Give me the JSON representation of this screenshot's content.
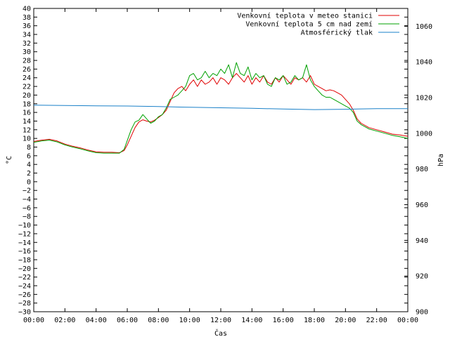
{
  "chart_data": {
    "type": "line",
    "xlabel": "Čas",
    "ylabel": "°C",
    "y2label": "hPa",
    "xlim": [
      0,
      24
    ],
    "ylim": [
      -30,
      40
    ],
    "y2lim": [
      900,
      1070
    ],
    "x_ticks": [
      "00:00",
      "02:00",
      "04:00",
      "06:00",
      "08:00",
      "10:00",
      "12:00",
      "14:00",
      "16:00",
      "18:00",
      "20:00",
      "22:00",
      "00:00"
    ],
    "y_ticks": [
      40,
      38,
      36,
      34,
      32,
      30,
      28,
      26,
      24,
      22,
      20,
      18,
      16,
      14,
      12,
      10,
      8,
      6,
      4,
      2,
      0,
      -2,
      -4,
      -6,
      -8,
      -10,
      -12,
      -14,
      -16,
      -18,
      -20,
      -22,
      -24,
      -26,
      -28,
      -30
    ],
    "y2_ticks": [
      1060,
      1040,
      1020,
      1000,
      980,
      960,
      940,
      920,
      900
    ],
    "grid": false,
    "legend_position": "top-right",
    "series": [
      {
        "name": "Venkovní teplota v meteo stanici",
        "color": "#e00000",
        "axis": "y",
        "x": [
          0,
          0.5,
          1,
          1.5,
          2,
          2.5,
          3,
          3.5,
          4,
          4.5,
          5,
          5.5,
          5.8,
          6,
          6.25,
          6.5,
          6.75,
          7,
          7.25,
          7.5,
          7.75,
          8,
          8.25,
          8.5,
          8.75,
          9,
          9.25,
          9.5,
          9.75,
          10,
          10.25,
          10.5,
          10.75,
          11,
          11.25,
          11.5,
          11.75,
          12,
          12.25,
          12.5,
          12.75,
          13,
          13.25,
          13.5,
          13.75,
          14,
          14.25,
          14.5,
          14.75,
          15,
          15.25,
          15.5,
          15.75,
          16,
          16.25,
          16.5,
          16.75,
          17,
          17.25,
          17.5,
          17.75,
          18,
          18.25,
          18.5,
          18.75,
          19,
          19.25,
          19.5,
          19.75,
          20,
          20.25,
          20.5,
          20.75,
          21,
          21.5,
          22,
          22.5,
          23,
          23.5,
          24
        ],
        "y": [
          9.3,
          9.6,
          9.8,
          9.4,
          8.7,
          8.2,
          7.8,
          7.3,
          6.9,
          6.8,
          6.8,
          6.7,
          7.2,
          8.5,
          10.5,
          12.5,
          13.8,
          14.3,
          14.0,
          13.8,
          14.2,
          14.8,
          15.5,
          16.5,
          18.5,
          20.5,
          21.5,
          22.0,
          21.0,
          22.5,
          23.5,
          22.0,
          23.5,
          22.5,
          23.0,
          24.0,
          22.5,
          24.0,
          23.5,
          22.5,
          24.0,
          25.0,
          24.0,
          23.0,
          24.5,
          22.5,
          24.0,
          23.0,
          24.5,
          23.0,
          22.5,
          24.0,
          23.0,
          24.5,
          23.5,
          22.5,
          24.0,
          23.5,
          24.0,
          23.0,
          24.5,
          22.5,
          22.0,
          21.5,
          21.0,
          21.2,
          21.0,
          20.5,
          20.0,
          19.0,
          18.0,
          16.5,
          14.5,
          13.5,
          12.5,
          12.0,
          11.5,
          11.0,
          10.8,
          10.5
        ]
      },
      {
        "name": "Venkovní teplota 5 cm nad zemí",
        "color": "#00a000",
        "axis": "y",
        "x": [
          0,
          0.5,
          1,
          1.5,
          2,
          2.5,
          3,
          3.5,
          4,
          4.5,
          5,
          5.5,
          5.8,
          6,
          6.25,
          6.5,
          6.75,
          7,
          7.25,
          7.5,
          7.75,
          8,
          8.25,
          8.5,
          8.75,
          9,
          9.25,
          9.5,
          9.75,
          10,
          10.25,
          10.5,
          10.75,
          11,
          11.25,
          11.5,
          11.75,
          12,
          12.25,
          12.5,
          12.75,
          13,
          13.25,
          13.5,
          13.75,
          14,
          14.25,
          14.5,
          14.75,
          15,
          15.25,
          15.5,
          15.75,
          16,
          16.25,
          16.5,
          16.75,
          17,
          17.25,
          17.5,
          17.75,
          18,
          18.25,
          18.5,
          18.75,
          19,
          19.25,
          19.5,
          19.75,
          20,
          20.25,
          20.5,
          20.75,
          21,
          21.5,
          22,
          22.5,
          23,
          23.5,
          24
        ],
        "y": [
          9.1,
          9.4,
          9.6,
          9.2,
          8.5,
          8.0,
          7.6,
          7.1,
          6.7,
          6.6,
          6.6,
          6.6,
          7.5,
          9.5,
          12.0,
          13.8,
          14.2,
          15.5,
          14.5,
          13.5,
          14.0,
          15.0,
          15.5,
          17.0,
          19.0,
          19.5,
          20.0,
          21.0,
          22.0,
          24.5,
          25.0,
          23.5,
          24.0,
          25.5,
          24.0,
          25.0,
          24.5,
          26.0,
          25.0,
          27.0,
          24.0,
          27.5,
          25.0,
          24.5,
          26.5,
          23.5,
          25.0,
          24.0,
          24.5,
          22.5,
          22.0,
          24.0,
          23.5,
          24.5,
          22.5,
          23.0,
          24.5,
          23.5,
          24.0,
          27.0,
          23.5,
          22.0,
          21.0,
          20.0,
          19.5,
          19.5,
          19.0,
          18.5,
          18.0,
          17.5,
          17.0,
          16.0,
          14.0,
          13.2,
          12.2,
          11.7,
          11.2,
          10.7,
          10.4,
          10.0
        ]
      },
      {
        "name": "Atmosférický tlak",
        "color": "#1a80c8",
        "axis": "y2",
        "x": [
          0,
          2,
          4,
          6,
          8,
          10,
          12,
          14,
          16,
          18,
          20,
          22,
          24
        ],
        "y": [
          1015.8,
          1015.6,
          1015.4,
          1015.3,
          1015.0,
          1014.6,
          1014.3,
          1014.0,
          1013.6,
          1013.3,
          1013.5,
          1013.8,
          1013.8
        ]
      }
    ]
  }
}
